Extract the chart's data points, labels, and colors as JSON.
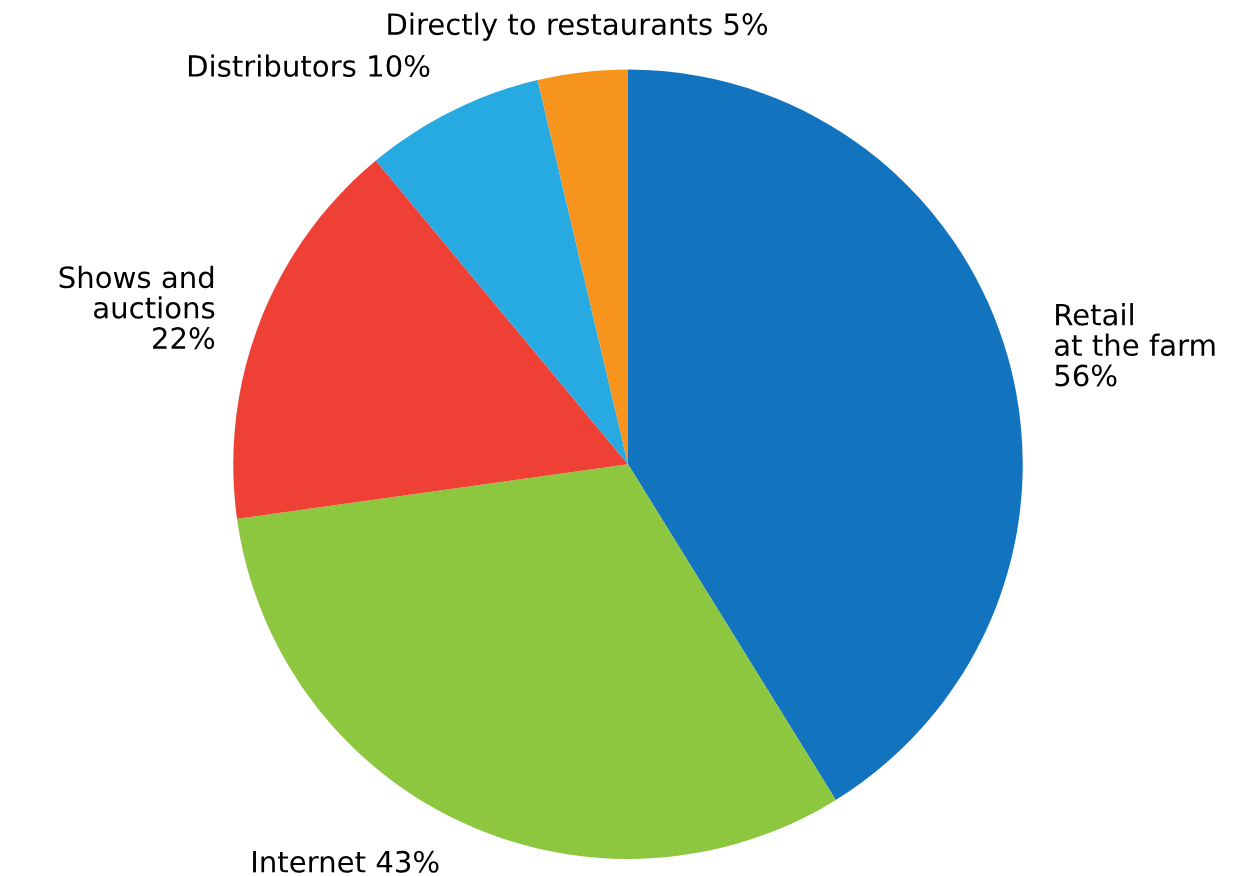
{
  "chart_data": {
    "type": "pie",
    "categories": [
      "Retail\nat the farm",
      "Internet",
      "Shows and\nauctions",
      "Distributors",
      "Directly to restaurants"
    ],
    "values": [
      56,
      43,
      22,
      10,
      5
    ],
    "value_labels": [
      "56%",
      "43%",
      "22%",
      "10%",
      "5%"
    ],
    "colors": [
      "#1273be",
      "#8dc63f",
      "#ef4036",
      "#27aae1",
      "#f7941d"
    ],
    "legend": false
  }
}
